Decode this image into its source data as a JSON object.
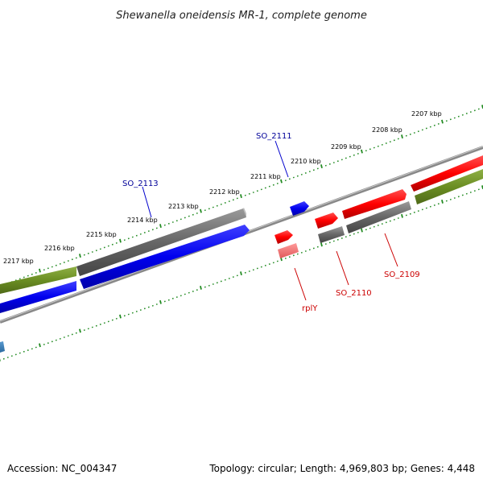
{
  "title": "Shewanella oneidensis MR-1, complete genome",
  "footer": {
    "accession": "Accession: NC_004347",
    "topology": "Topology: circular; Length: 4,969,803 bp; Genes: 4,448"
  },
  "scale_ticks": [
    "2217 kbp",
    "2216 kbp",
    "2215 kbp",
    "2214 kbp",
    "2213 kbp",
    "2212 kbp",
    "2211 kbp",
    "2210 kbp",
    "2209 kbp",
    "2208 kbp",
    "2207 kbp"
  ],
  "gene_labels": {
    "so_2113": "SO_2113",
    "so_2111": "SO_2111",
    "rply": "rplY",
    "so_2110": "SO_2110",
    "so_2109": "SO_2109"
  },
  "colors": {
    "forward_gene": "#ff0000",
    "reverse_gene": "#0000ff",
    "gc_bar_high": "#6b8e23",
    "cds_gray": "#666666",
    "tick_green": "#228b22",
    "label_forward": "#cc0000",
    "label_reverse": "#000099",
    "backbone": "#888888"
  }
}
